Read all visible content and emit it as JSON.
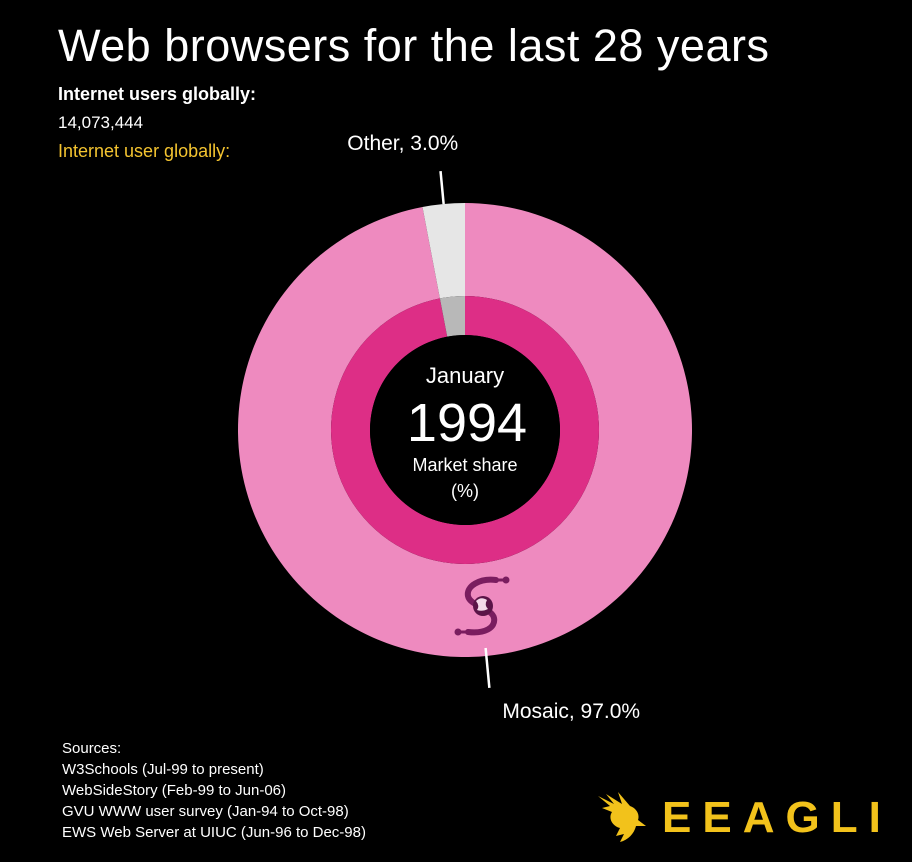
{
  "header": {
    "title": "Web browsers for the last 28 years",
    "users_label": "Internet users globally:",
    "users_value": "14,073,444",
    "users_label_2": "Internet user globally:"
  },
  "center": {
    "month": "January",
    "year": "1994",
    "caption_line1": "Market share",
    "caption_line2": "(%)"
  },
  "chart_data": {
    "type": "pie",
    "style": "donut",
    "title": "Web browsers for the last 28 years",
    "slices": [
      {
        "label": "Mosaic, 97.0%",
        "name": "Mosaic",
        "value": 97.0,
        "color": "#ee8abf",
        "inner_color": "#dd2e86"
      },
      {
        "label": "Other, 3.0%",
        "name": "Other",
        "value": 3.0,
        "color": "#e6e6e6",
        "inner_color": "#b8b8b8"
      }
    ]
  },
  "sources": {
    "heading": "Sources:",
    "items": [
      "W3Schools (Jul-99 to present)",
      "WebSideStory (Feb-99 to Jun-06)",
      "GVU WWW user survey (Jan-94 to Oct-98)",
      "EWS Web Server at UIUC (Jun-96 to Dec-98)"
    ]
  },
  "brand": {
    "name": "EEAGLI",
    "color": "#f2c21b"
  }
}
